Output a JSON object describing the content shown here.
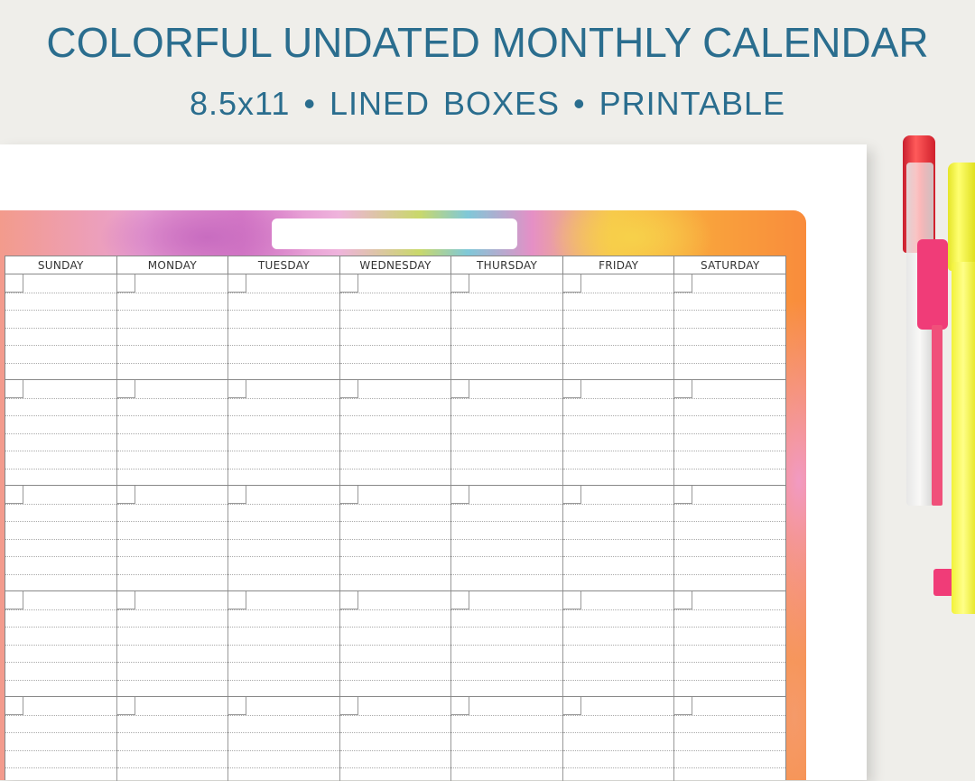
{
  "title": "COLORFUL UNDATED MONTHLY CALENDAR",
  "subtitle": "8.5x11  •  LINED BOXES  •  PRINTABLE",
  "calendar": {
    "days": [
      "SUNDAY",
      "MONDAY",
      "TUESDAY",
      "WEDNESDAY",
      "THURSDAY",
      "FRIDAY",
      "SATURDAY"
    ],
    "visible_weeks": 5,
    "lines_per_box": 5
  },
  "colors": {
    "title": "#2a6d8e",
    "pen_red": "#e8283c",
    "pen_pink": "#f03c78",
    "pen_yellow": "#f2f23a"
  }
}
